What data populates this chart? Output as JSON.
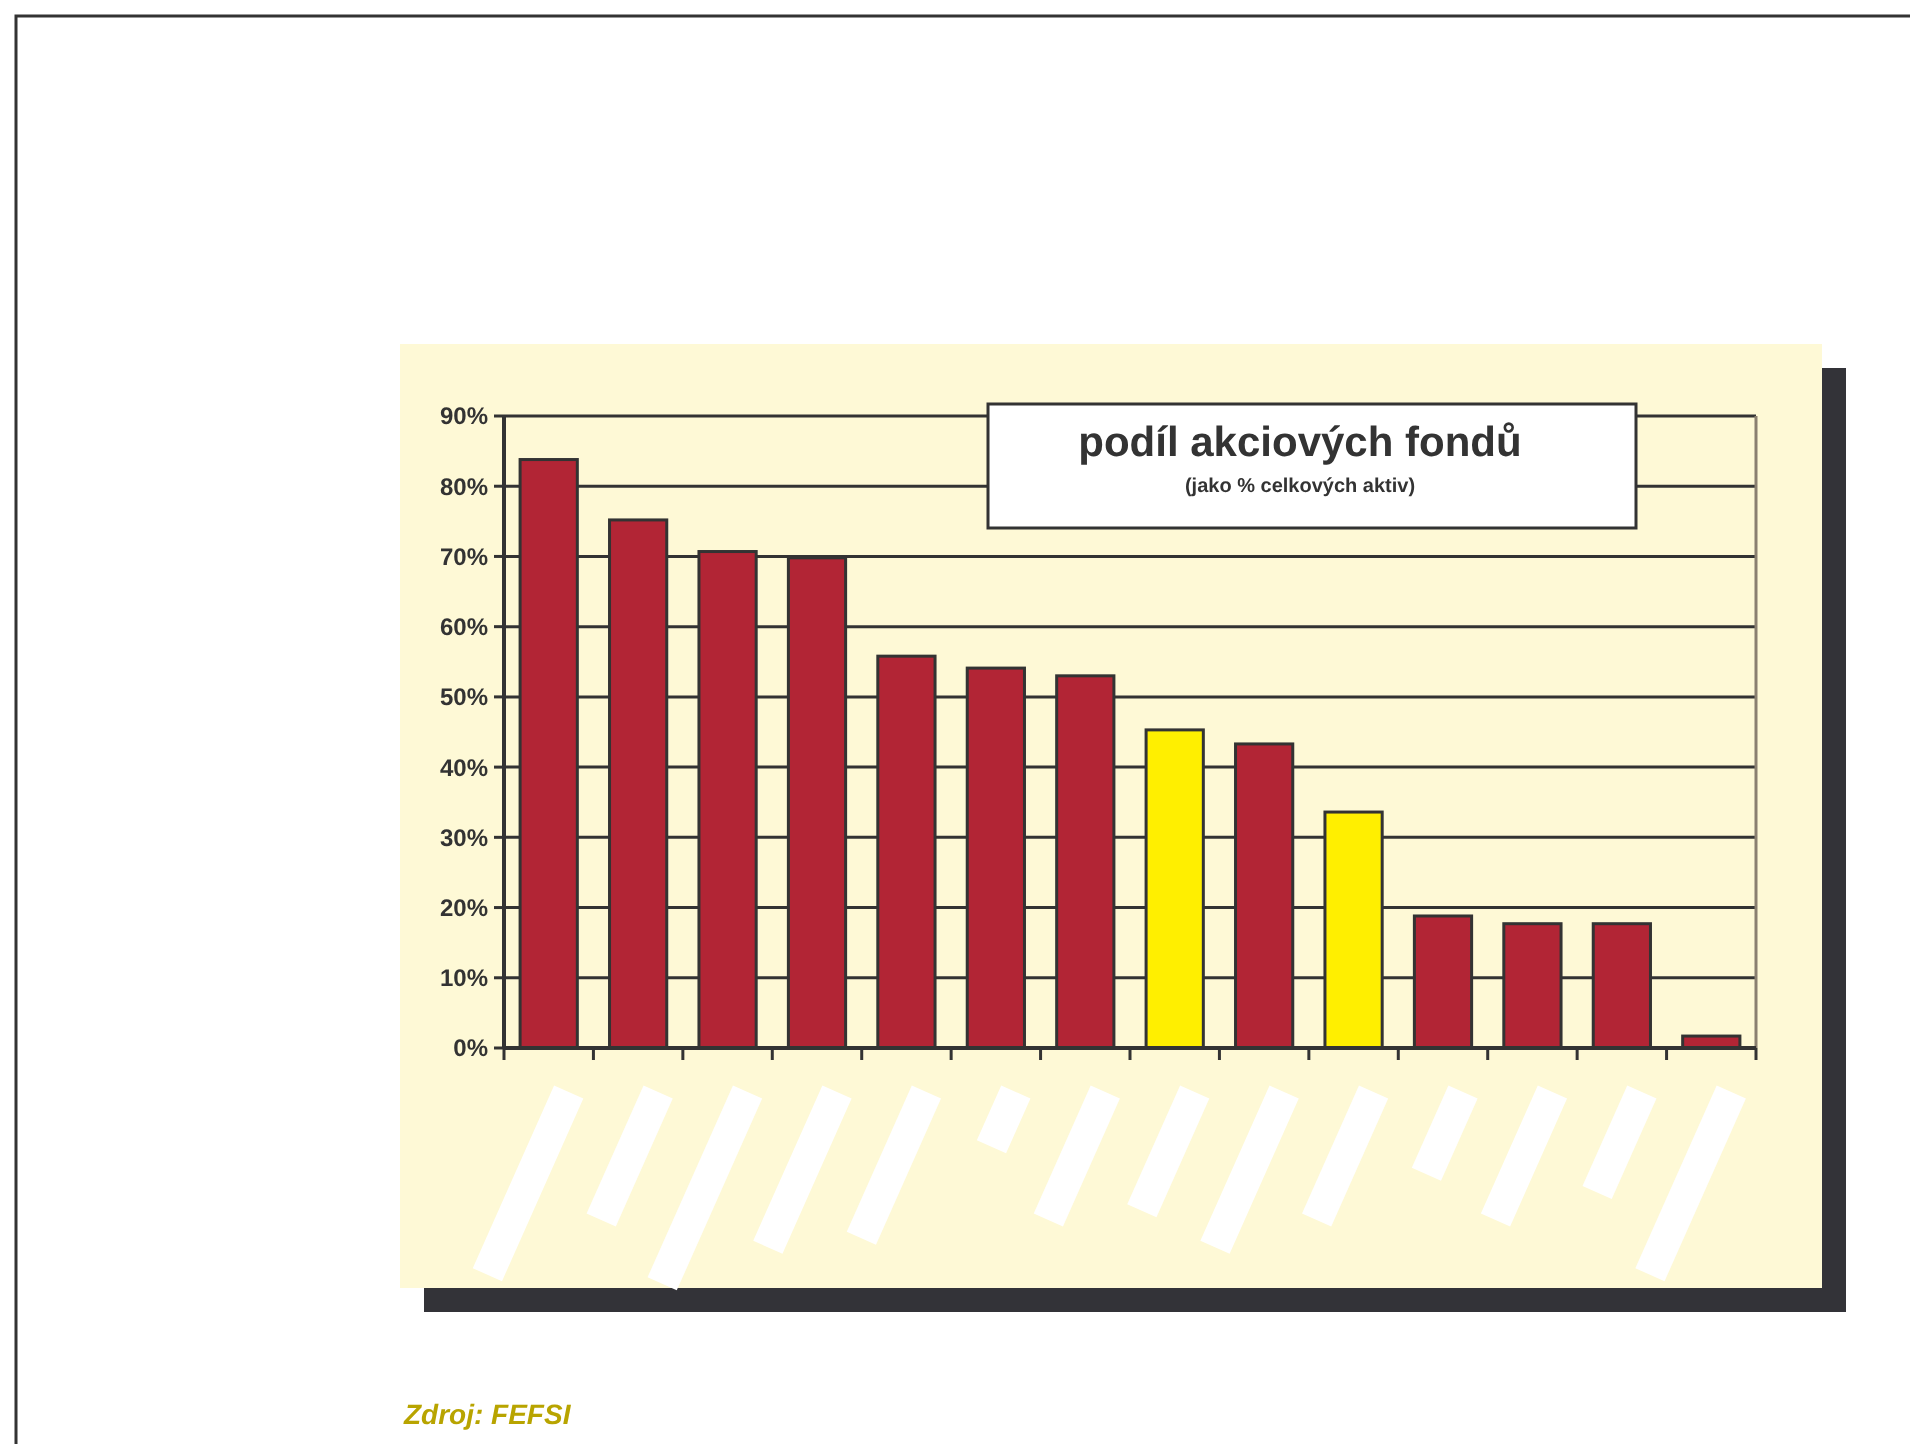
{
  "chart_data": {
    "type": "bar",
    "title": "podíl akciových fondů",
    "subtitle": "(jako % celkových aktiv)",
    "categories": [
      null,
      null,
      null,
      null,
      null,
      null,
      null,
      null,
      null,
      null,
      null,
      null,
      null,
      null
    ],
    "values": [
      83.8,
      75.2,
      70.7,
      69.8,
      55.8,
      54.1,
      53.0,
      45.3,
      43.3,
      33.6,
      18.8,
      17.7,
      17.7,
      1.7
    ],
    "colors": [
      "#b22535",
      "#b22535",
      "#b22535",
      "#b22535",
      "#b22535",
      "#b22535",
      "#b22535",
      "#ffef00",
      "#b22535",
      "#ffef00",
      "#b22535",
      "#b22535",
      "#b22535",
      "#b22535"
    ],
    "ylim": [
      0,
      90
    ],
    "yticks": [
      {
        "value": 0,
        "label": "0%"
      },
      {
        "value": 10,
        "label": "10%"
      },
      {
        "value": 20,
        "label": "20%"
      },
      {
        "value": 30,
        "label": "30%"
      },
      {
        "value": 40,
        "label": "40%"
      },
      {
        "value": 50,
        "label": "50%"
      },
      {
        "value": 60,
        "label": "60%"
      },
      {
        "value": 70,
        "label": "70%"
      },
      {
        "value": 80,
        "label": "80%"
      },
      {
        "value": 90,
        "label": "90%"
      }
    ],
    "grid": "y",
    "annotations": [
      "Zdroj: FEFSI"
    ]
  }
}
